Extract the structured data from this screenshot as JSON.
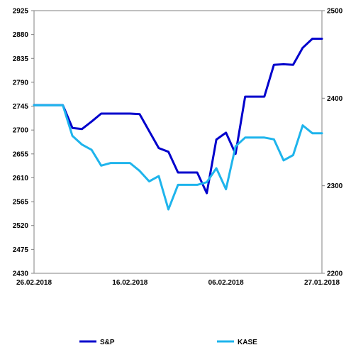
{
  "chart_data": {
    "type": "line",
    "x": [
      "26.02.2018",
      "",
      "",
      "",
      "",
      "",
      "",
      "",
      "",
      "",
      "16.02.2018",
      "",
      "",
      "",
      "",
      "",
      "",
      "",
      "",
      "",
      "06.02.2018",
      "",
      "",
      "",
      "",
      "",
      "",
      "",
      "",
      "",
      "27.01.2018"
    ],
    "xticks": [
      "26.02.2018",
      "16.02.2018",
      "06.02.2018",
      "27.01.2018"
    ],
    "y_left": {
      "ylim": [
        2430,
        2925
      ],
      "ticks": [
        2430,
        2475,
        2520,
        2565,
        2610,
        2655,
        2700,
        2745,
        2790,
        2835,
        2880,
        2925
      ]
    },
    "y_right": {
      "ylim": [
        2200,
        2500
      ],
      "ticks": [
        2200,
        2300,
        2400,
        2500
      ]
    },
    "series": [
      {
        "name": "S&P",
        "axis": "left",
        "color": "#0000CC",
        "values": [
          2747,
          2747,
          2747,
          2747,
          2704,
          2702,
          2716,
          2731,
          2731,
          2731,
          2731,
          2730,
          2698,
          2666,
          2659,
          2620,
          2620,
          2620,
          2581,
          2682,
          2695,
          2655,
          2763,
          2763,
          2763,
          2823,
          2824,
          2823,
          2855,
          2872,
          2872
        ]
      },
      {
        "name": "KASE",
        "axis": "right",
        "color": "#1EB4EC",
        "values": [
          2392,
          2392,
          2392,
          2392,
          2357,
          2347,
          2341,
          2323,
          2326,
          2326,
          2326,
          2317,
          2305,
          2311,
          2273,
          2301,
          2301,
          2301,
          2304,
          2320,
          2296,
          2345,
          2355,
          2355,
          2355,
          2353,
          2329,
          2335,
          2369,
          2360,
          2360
        ]
      }
    ],
    "legend": {
      "placement": "bottom",
      "entries": [
        "S&P",
        "KASE"
      ]
    },
    "grid": false
  }
}
